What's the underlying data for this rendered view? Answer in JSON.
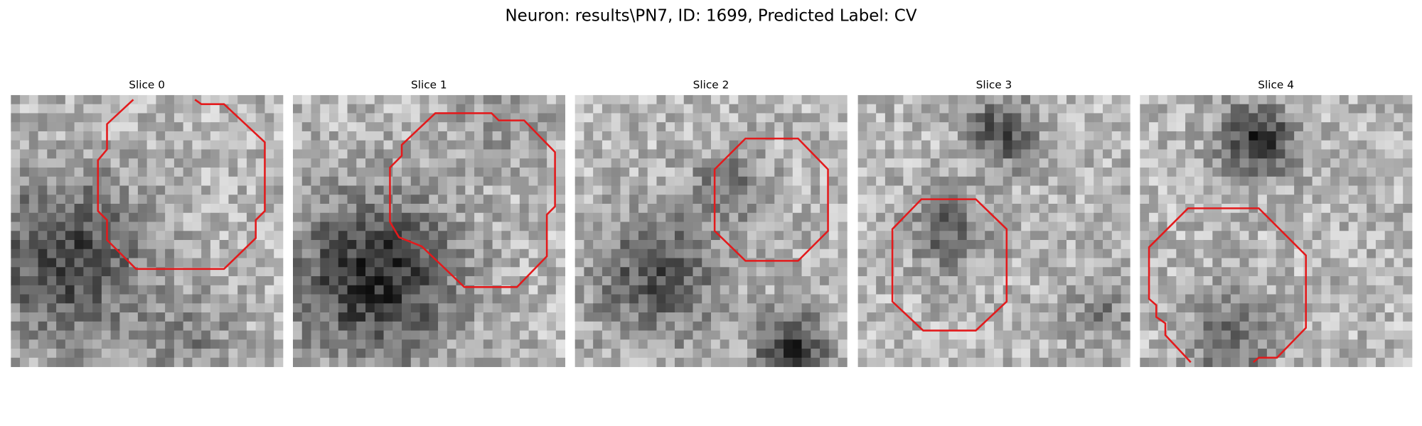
{
  "title": "Neuron: results\\PN7, ID: 1699, Predicted Label: CV",
  "panels": [
    {
      "title": "Slice 0"
    },
    {
      "title": "Slice 1"
    },
    {
      "title": "Slice 2"
    },
    {
      "title": "Slice 3"
    },
    {
      "title": "Slice 4"
    }
  ]
}
